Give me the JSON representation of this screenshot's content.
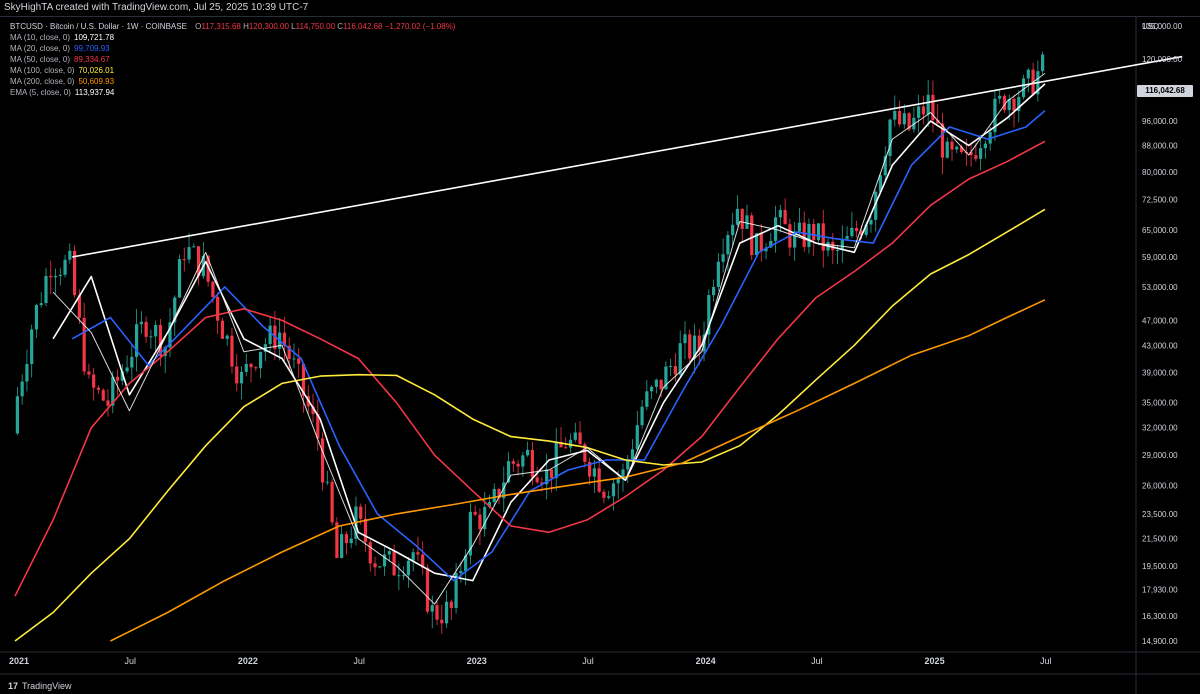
{
  "header": {
    "credit": "SkyHighTA created with TradingView.com, Jul 25, 2025 10:39 UTC-7",
    "symbol": "BTCUSD · Bitcoin / U.S. Dollar · 1W · COINBASE",
    "open_label": "O",
    "open": "117,315.68",
    "high_label": "H",
    "high": "120,300.00",
    "low_label": "L",
    "low": "114,750.00",
    "close_label": "C",
    "close": "116,042.68",
    "change": "−1,270.02 (−1.08%)"
  },
  "indicators": [
    {
      "label": "MA (10, close, 0)",
      "value": "109,721.78",
      "color": "#ffffff"
    },
    {
      "label": "MA (20, close, 0)",
      "value": "99,709.93",
      "color": "#2962ff"
    },
    {
      "label": "MA (50, close, 0)",
      "value": "89,334.67",
      "color": "#f23645"
    },
    {
      "label": "MA (100, close, 0)",
      "value": "70,026.01",
      "color": "#ffeb3b"
    },
    {
      "label": "MA (200, close, 0)",
      "value": "50,609.93",
      "color": "#ff9800"
    },
    {
      "label": "EMA (5, close, 0)",
      "value": "113,937.94",
      "color": "#ffffff"
    }
  ],
  "axis": {
    "currency": "USD",
    "last_price": "116,042.68",
    "y_ticks": [
      "135,000.00",
      "120,000.00",
      "108,000.00",
      "96,000.00",
      "88,000.00",
      "80,000.00",
      "72,500.00",
      "65,000.00",
      "59,000.00",
      "53,000.00",
      "47,000.00",
      "43,000.00",
      "39,000.00",
      "35,000.00",
      "32,000.00",
      "29,000.00",
      "26,000.00",
      "23,500.00",
      "21,500.00",
      "19,500.00",
      "17,930.00",
      "16,300.00",
      "14,900.00"
    ],
    "x_ticks": [
      "2021",
      "Jul",
      "2022",
      "Jul",
      "2023",
      "Jul",
      "2024",
      "Jul",
      "2025",
      "Jul"
    ]
  },
  "branding": "TradingView",
  "colors": {
    "up": "#26a69a",
    "down": "#f23645",
    "background": "#000000",
    "trendline": "#ffffff"
  },
  "chart_data": {
    "type": "line",
    "symbol": "BTCUSD",
    "interval": "1W",
    "scale": "log",
    "x_range": [
      "2021-01",
      "2025-07"
    ],
    "ylim": [
      14900,
      135000
    ],
    "grid": false,
    "last_close": 116042.68,
    "candles_close_path": [
      {
        "x": "2021-01",
        "y": 33000
      },
      {
        "x": "2021-02",
        "y": 46000
      },
      {
        "x": "2021-03",
        "y": 58000
      },
      {
        "x": "2021-04",
        "y": 57000
      },
      {
        "x": "2021-05",
        "y": 37000
      },
      {
        "x": "2021-06",
        "y": 35000
      },
      {
        "x": "2021-07",
        "y": 41000
      },
      {
        "x": "2021-08",
        "y": 47000
      },
      {
        "x": "2021-09",
        "y": 43000
      },
      {
        "x": "2021-10",
        "y": 61000
      },
      {
        "x": "2021-11",
        "y": 57000
      },
      {
        "x": "2021-12",
        "y": 46000
      },
      {
        "x": "2022-01",
        "y": 38000
      },
      {
        "x": "2022-02",
        "y": 43000
      },
      {
        "x": "2022-03",
        "y": 45000
      },
      {
        "x": "2022-04",
        "y": 38000
      },
      {
        "x": "2022-05",
        "y": 31000
      },
      {
        "x": "2022-06",
        "y": 20000
      },
      {
        "x": "2022-07",
        "y": 23000
      },
      {
        "x": "2022-08",
        "y": 20000
      },
      {
        "x": "2022-09",
        "y": 19500
      },
      {
        "x": "2022-10",
        "y": 20500
      },
      {
        "x": "2022-11",
        "y": 16500
      },
      {
        "x": "2022-12",
        "y": 16600
      },
      {
        "x": "2023-01",
        "y": 23000
      },
      {
        "x": "2023-02",
        "y": 23500
      },
      {
        "x": "2023-03",
        "y": 28000
      },
      {
        "x": "2023-04",
        "y": 29000
      },
      {
        "x": "2023-05",
        "y": 27000
      },
      {
        "x": "2023-06",
        "y": 30500
      },
      {
        "x": "2023-07",
        "y": 29200
      },
      {
        "x": "2023-08",
        "y": 26000
      },
      {
        "x": "2023-09",
        "y": 27000
      },
      {
        "x": "2023-10",
        "y": 34500
      },
      {
        "x": "2023-11",
        "y": 37700
      },
      {
        "x": "2023-12",
        "y": 42300
      },
      {
        "x": "2024-01",
        "y": 42500
      },
      {
        "x": "2024-02",
        "y": 61000
      },
      {
        "x": "2024-03",
        "y": 71000
      },
      {
        "x": "2024-04",
        "y": 60600
      },
      {
        "x": "2024-05",
        "y": 67500
      },
      {
        "x": "2024-06",
        "y": 62700
      },
      {
        "x": "2024-07",
        "y": 64600
      },
      {
        "x": "2024-08",
        "y": 59000
      },
      {
        "x": "2024-09",
        "y": 63300
      },
      {
        "x": "2024-10",
        "y": 70200
      },
      {
        "x": "2024-11",
        "y": 96400
      },
      {
        "x": "2024-12",
        "y": 93400
      },
      {
        "x": "2025-01",
        "y": 102400
      },
      {
        "x": "2025-02",
        "y": 84300
      },
      {
        "x": "2025-03",
        "y": 82500
      },
      {
        "x": "2025-04",
        "y": 94200
      },
      {
        "x": "2025-05",
        "y": 104600
      },
      {
        "x": "2025-06",
        "y": 107100
      },
      {
        "x": "2025-07",
        "y": 116042
      }
    ],
    "series": [
      {
        "name": "MA (10, close, 0)",
        "color": "#ffffff",
        "points": [
          {
            "x": "2021-03",
            "y": 44000
          },
          {
            "x": "2021-05",
            "y": 55000
          },
          {
            "x": "2021-07",
            "y": 36000
          },
          {
            "x": "2021-09",
            "y": 45000
          },
          {
            "x": "2021-11",
            "y": 58000
          },
          {
            "x": "2022-01",
            "y": 44000
          },
          {
            "x": "2022-03",
            "y": 41000
          },
          {
            "x": "2022-05",
            "y": 33000
          },
          {
            "x": "2022-07",
            "y": 22000
          },
          {
            "x": "2022-09",
            "y": 20500
          },
          {
            "x": "2022-11",
            "y": 19000
          },
          {
            "x": "2023-01",
            "y": 18500
          },
          {
            "x": "2023-03",
            "y": 24500
          },
          {
            "x": "2023-05",
            "y": 28500
          },
          {
            "x": "2023-07",
            "y": 29500
          },
          {
            "x": "2023-09",
            "y": 26500
          },
          {
            "x": "2023-11",
            "y": 35000
          },
          {
            "x": "2024-01",
            "y": 43000
          },
          {
            "x": "2024-03",
            "y": 62000
          },
          {
            "x": "2024-05",
            "y": 66000
          },
          {
            "x": "2024-07",
            "y": 62000
          },
          {
            "x": "2024-09",
            "y": 60000
          },
          {
            "x": "2024-11",
            "y": 82000
          },
          {
            "x": "2025-01",
            "y": 96000
          },
          {
            "x": "2025-03",
            "y": 88000
          },
          {
            "x": "2025-05",
            "y": 97000
          },
          {
            "x": "2025-07",
            "y": 109700
          }
        ]
      },
      {
        "name": "MA (20, close, 0)",
        "color": "#2962ff",
        "points": [
          {
            "x": "2021-04",
            "y": 44000
          },
          {
            "x": "2021-06",
            "y": 47500
          },
          {
            "x": "2021-08",
            "y": 40000
          },
          {
            "x": "2021-10",
            "y": 46000
          },
          {
            "x": "2021-12",
            "y": 53000
          },
          {
            "x": "2022-02",
            "y": 46000
          },
          {
            "x": "2022-04",
            "y": 41000
          },
          {
            "x": "2022-06",
            "y": 30000
          },
          {
            "x": "2022-08",
            "y": 23500
          },
          {
            "x": "2022-10",
            "y": 21000
          },
          {
            "x": "2022-12",
            "y": 18500
          },
          {
            "x": "2023-02",
            "y": 20500
          },
          {
            "x": "2023-04",
            "y": 25500
          },
          {
            "x": "2023-06",
            "y": 27500
          },
          {
            "x": "2023-08",
            "y": 28500
          },
          {
            "x": "2023-10",
            "y": 28500
          },
          {
            "x": "2023-12",
            "y": 36500
          },
          {
            "x": "2024-02",
            "y": 46000
          },
          {
            "x": "2024-04",
            "y": 60000
          },
          {
            "x": "2024-06",
            "y": 64500
          },
          {
            "x": "2024-08",
            "y": 63000
          },
          {
            "x": "2024-10",
            "y": 62000
          },
          {
            "x": "2024-12",
            "y": 82000
          },
          {
            "x": "2025-02",
            "y": 94000
          },
          {
            "x": "2025-04",
            "y": 90000
          },
          {
            "x": "2025-06",
            "y": 94000
          },
          {
            "x": "2025-07",
            "y": 99700
          }
        ]
      },
      {
        "name": "MA (50, close, 0)",
        "color": "#f23645",
        "points": [
          {
            "x": "2021-01",
            "y": 17500
          },
          {
            "x": "2021-03",
            "y": 23000
          },
          {
            "x": "2021-05",
            "y": 32000
          },
          {
            "x": "2021-07",
            "y": 37500
          },
          {
            "x": "2021-09",
            "y": 42000
          },
          {
            "x": "2021-11",
            "y": 47500
          },
          {
            "x": "2022-01",
            "y": 49000
          },
          {
            "x": "2022-03",
            "y": 47000
          },
          {
            "x": "2022-05",
            "y": 44000
          },
          {
            "x": "2022-07",
            "y": 41000
          },
          {
            "x": "2022-09",
            "y": 35000
          },
          {
            "x": "2022-11",
            "y": 29000
          },
          {
            "x": "2023-01",
            "y": 25500
          },
          {
            "x": "2023-03",
            "y": 22500
          },
          {
            "x": "2023-05",
            "y": 22000
          },
          {
            "x": "2023-07",
            "y": 23000
          },
          {
            "x": "2023-09",
            "y": 25000
          },
          {
            "x": "2023-11",
            "y": 27500
          },
          {
            "x": "2024-01",
            "y": 31000
          },
          {
            "x": "2024-03",
            "y": 37000
          },
          {
            "x": "2024-05",
            "y": 44000
          },
          {
            "x": "2024-07",
            "y": 51000
          },
          {
            "x": "2024-09",
            "y": 56000
          },
          {
            "x": "2024-11",
            "y": 62000
          },
          {
            "x": "2025-01",
            "y": 71000
          },
          {
            "x": "2025-03",
            "y": 78000
          },
          {
            "x": "2025-05",
            "y": 83000
          },
          {
            "x": "2025-07",
            "y": 89300
          }
        ]
      },
      {
        "name": "MA (100, close, 0)",
        "color": "#ffeb3b",
        "points": [
          {
            "x": "2021-01",
            "y": 14900
          },
          {
            "x": "2021-03",
            "y": 16500
          },
          {
            "x": "2021-05",
            "y": 19000
          },
          {
            "x": "2021-07",
            "y": 21500
          },
          {
            "x": "2021-09",
            "y": 25500
          },
          {
            "x": "2021-11",
            "y": 30000
          },
          {
            "x": "2022-01",
            "y": 34500
          },
          {
            "x": "2022-03",
            "y": 37500
          },
          {
            "x": "2022-05",
            "y": 38500
          },
          {
            "x": "2022-07",
            "y": 38700
          },
          {
            "x": "2022-09",
            "y": 38600
          },
          {
            "x": "2022-11",
            "y": 36000
          },
          {
            "x": "2023-01",
            "y": 33000
          },
          {
            "x": "2023-03",
            "y": 31000
          },
          {
            "x": "2023-05",
            "y": 30500
          },
          {
            "x": "2023-07",
            "y": 29800
          },
          {
            "x": "2023-09",
            "y": 28500
          },
          {
            "x": "2023-11",
            "y": 28000
          },
          {
            "x": "2024-01",
            "y": 28300
          },
          {
            "x": "2024-03",
            "y": 30000
          },
          {
            "x": "2024-05",
            "y": 33500
          },
          {
            "x": "2024-07",
            "y": 38000
          },
          {
            "x": "2024-09",
            "y": 43000
          },
          {
            "x": "2024-11",
            "y": 49500
          },
          {
            "x": "2025-01",
            "y": 55500
          },
          {
            "x": "2025-03",
            "y": 59500
          },
          {
            "x": "2025-05",
            "y": 64500
          },
          {
            "x": "2025-07",
            "y": 70000
          }
        ]
      },
      {
        "name": "MA (200, close, 0)",
        "color": "#ff9800",
        "points": [
          {
            "x": "2021-06",
            "y": 14900
          },
          {
            "x": "2021-09",
            "y": 16500
          },
          {
            "x": "2021-12",
            "y": 18500
          },
          {
            "x": "2022-03",
            "y": 20500
          },
          {
            "x": "2022-06",
            "y": 22500
          },
          {
            "x": "2022-09",
            "y": 23500
          },
          {
            "x": "2022-12",
            "y": 24300
          },
          {
            "x": "2023-03",
            "y": 25200
          },
          {
            "x": "2023-06",
            "y": 26000
          },
          {
            "x": "2023-09",
            "y": 26800
          },
          {
            "x": "2023-12",
            "y": 28200
          },
          {
            "x": "2024-03",
            "y": 31000
          },
          {
            "x": "2024-06",
            "y": 34000
          },
          {
            "x": "2024-09",
            "y": 37500
          },
          {
            "x": "2024-12",
            "y": 41500
          },
          {
            "x": "2025-03",
            "y": 44500
          },
          {
            "x": "2025-05",
            "y": 47500
          },
          {
            "x": "2025-07",
            "y": 50600
          }
        ]
      },
      {
        "name": "EMA (5, close, 0)",
        "color": "#ffffff",
        "points": [
          {
            "x": "2021-03",
            "y": 52000
          },
          {
            "x": "2021-05",
            "y": 45000
          },
          {
            "x": "2021-07",
            "y": 34000
          },
          {
            "x": "2021-09",
            "y": 45000
          },
          {
            "x": "2021-11",
            "y": 60000
          },
          {
            "x": "2022-01",
            "y": 42000
          },
          {
            "x": "2022-03",
            "y": 43000
          },
          {
            "x": "2022-05",
            "y": 30000
          },
          {
            "x": "2022-07",
            "y": 21500
          },
          {
            "x": "2022-09",
            "y": 19500
          },
          {
            "x": "2022-11",
            "y": 17000
          },
          {
            "x": "2023-01",
            "y": 21000
          },
          {
            "x": "2023-03",
            "y": 27000
          },
          {
            "x": "2023-05",
            "y": 27500
          },
          {
            "x": "2023-07",
            "y": 29800
          },
          {
            "x": "2023-09",
            "y": 26500
          },
          {
            "x": "2023-11",
            "y": 37000
          },
          {
            "x": "2024-01",
            "y": 42000
          },
          {
            "x": "2024-03",
            "y": 67000
          },
          {
            "x": "2024-05",
            "y": 65000
          },
          {
            "x": "2024-07",
            "y": 62000
          },
          {
            "x": "2024-09",
            "y": 61000
          },
          {
            "x": "2024-11",
            "y": 90000
          },
          {
            "x": "2025-01",
            "y": 99000
          },
          {
            "x": "2025-03",
            "y": 85000
          },
          {
            "x": "2025-05",
            "y": 103000
          },
          {
            "x": "2025-07",
            "y": 113900
          }
        ]
      }
    ],
    "trendline": {
      "from": {
        "x": "2021-04",
        "y": 59000
      },
      "to": {
        "x": "2025-10",
        "y": 121000
      }
    }
  }
}
